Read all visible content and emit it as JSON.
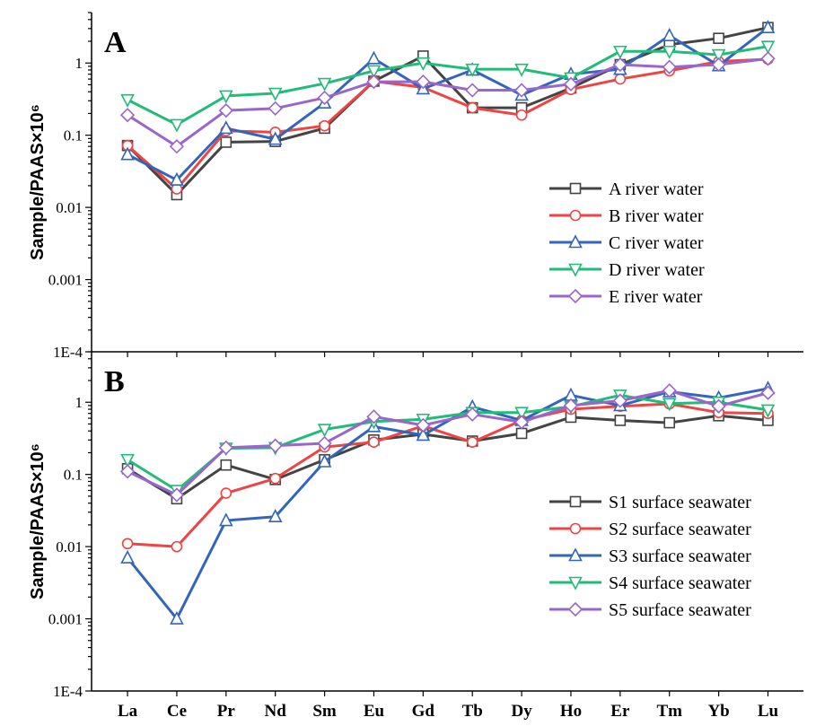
{
  "chart_data": [
    {
      "type": "line",
      "panel_label": "A",
      "ylabel": "Sample/PAAS×10⁶",
      "yscale": "log",
      "ylim": [
        0.0001,
        5
      ],
      "y_ticks": [
        {
          "value": 1,
          "label": "1"
        },
        {
          "value": 0.1,
          "label": "0.1"
        },
        {
          "value": 0.01,
          "label": "0.01"
        },
        {
          "value": 0.001,
          "label": "0.001"
        },
        {
          "value": 0.0001,
          "label": "1E-4"
        }
      ],
      "categories": [
        "La",
        "Ce",
        "Pr",
        "Nd",
        "Sm",
        "Eu",
        "Gd",
        "Tb",
        "Dy",
        "Ho",
        "Er",
        "Tm",
        "Yb",
        "Lu"
      ],
      "legend_position": "right",
      "series": [
        {
          "name": "A river water",
          "color": "#444444",
          "marker": "square",
          "values": [
            0.072,
            0.015,
            0.08,
            0.082,
            0.125,
            0.56,
            1.25,
            0.24,
            0.24,
            0.45,
            0.95,
            1.8,
            2.2,
            3.1
          ]
        },
        {
          "name": "B river water",
          "color": "#ee4444",
          "marker": "circle",
          "values": [
            0.072,
            0.018,
            0.115,
            0.11,
            0.135,
            0.56,
            0.46,
            0.24,
            0.19,
            0.43,
            0.6,
            0.78,
            1.05,
            1.13
          ]
        },
        {
          "name": "C river water",
          "color": "#3366bb",
          "marker": "triangle-up",
          "values": [
            0.054,
            0.024,
            0.125,
            0.088,
            0.28,
            1.15,
            0.44,
            0.8,
            0.36,
            0.7,
            0.82,
            2.4,
            0.92,
            3.1
          ]
        },
        {
          "name": "D river water",
          "color": "#22bb77",
          "marker": "triangle-down",
          "values": [
            0.31,
            0.14,
            0.35,
            0.38,
            0.52,
            0.78,
            1.0,
            0.82,
            0.82,
            0.62,
            1.45,
            1.45,
            1.3,
            1.7
          ]
        },
        {
          "name": "E river water",
          "color": "#9966cc",
          "marker": "diamond",
          "values": [
            0.19,
            0.07,
            0.22,
            0.235,
            0.33,
            0.55,
            0.55,
            0.42,
            0.42,
            0.51,
            0.95,
            0.88,
            0.95,
            1.15
          ]
        }
      ]
    },
    {
      "type": "line",
      "panel_label": "B",
      "ylabel": "Sample/PAAS×10⁶",
      "yscale": "log",
      "ylim": [
        0.0001,
        5
      ],
      "y_ticks": [
        {
          "value": 1,
          "label": "1"
        },
        {
          "value": 0.1,
          "label": "0.1"
        },
        {
          "value": 0.01,
          "label": "0.01"
        },
        {
          "value": 0.001,
          "label": "0.001"
        },
        {
          "value": 0.0001,
          "label": "1E-4"
        }
      ],
      "categories": [
        "La",
        "Ce",
        "Pr",
        "Nd",
        "Sm",
        "Eu",
        "Gd",
        "Tb",
        "Dy",
        "Ho",
        "Er",
        "Tm",
        "Yb",
        "Lu"
      ],
      "legend_position": "right",
      "series": [
        {
          "name": "S1 surface seawater",
          "color": "#444444",
          "marker": "square",
          "values": [
            0.12,
            0.046,
            0.135,
            0.085,
            0.16,
            0.3,
            0.36,
            0.29,
            0.37,
            0.62,
            0.56,
            0.52,
            0.65,
            0.56
          ]
        },
        {
          "name": "S2 surface seawater",
          "color": "#ee4444",
          "marker": "circle",
          "values": [
            0.011,
            0.01,
            0.055,
            0.088,
            0.24,
            0.28,
            0.47,
            0.28,
            0.56,
            0.8,
            0.88,
            0.95,
            0.72,
            0.7
          ]
        },
        {
          "name": "S3 surface seawater",
          "color": "#3366bb",
          "marker": "triangle-up",
          "values": [
            0.007,
            0.001,
            0.023,
            0.026,
            0.15,
            0.46,
            0.35,
            0.86,
            0.56,
            1.25,
            0.9,
            1.4,
            1.15,
            1.55
          ]
        },
        {
          "name": "S4 surface seawater",
          "color": "#22bb77",
          "marker": "triangle-down",
          "values": [
            0.16,
            0.06,
            0.23,
            0.235,
            0.42,
            0.54,
            0.58,
            0.72,
            0.72,
            0.87,
            1.25,
            0.96,
            1.0,
            0.78
          ]
        },
        {
          "name": "S5 surface seawater",
          "color": "#9966cc",
          "marker": "diamond",
          "values": [
            0.11,
            0.052,
            0.235,
            0.25,
            0.27,
            0.63,
            0.48,
            0.68,
            0.53,
            0.9,
            1.05,
            1.45,
            0.88,
            1.35
          ]
        }
      ]
    }
  ]
}
